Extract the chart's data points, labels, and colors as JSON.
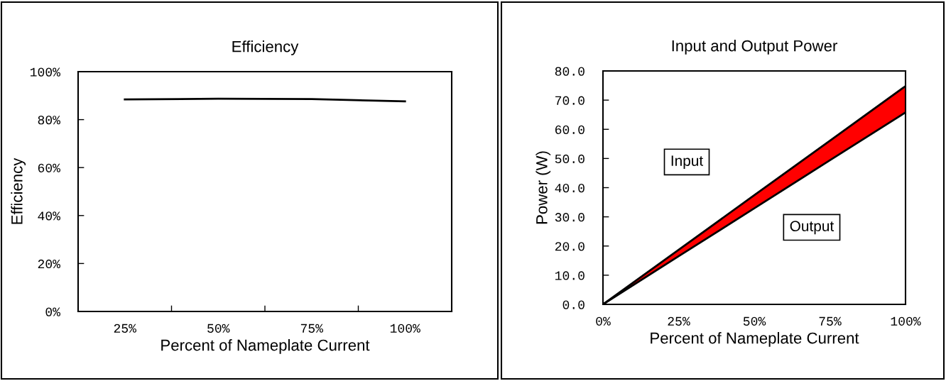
{
  "chart_data": [
    {
      "type": "line",
      "title": "Efficiency",
      "xlabel": "Percent of Nameplate Current",
      "ylabel": "Efficiency",
      "categories": [
        "25%",
        "50%",
        "75%",
        "100%"
      ],
      "series": [
        {
          "color": "#000000",
          "values": [
            88.4,
            88.7,
            88.6,
            87.6
          ]
        }
      ],
      "ylim": [
        0,
        100
      ],
      "yticks": [
        {
          "value": 0,
          "label": "0%"
        },
        {
          "value": 20,
          "label": "20%"
        },
        {
          "value": 40,
          "label": "40%"
        },
        {
          "value": 60,
          "label": "60%"
        },
        {
          "value": 80,
          "label": "80%"
        },
        {
          "value": 100,
          "label": "100%"
        }
      ],
      "grid": false,
      "legend": false,
      "marker": "none",
      "line_style": "solid"
    },
    {
      "type": "line",
      "title": "Input and Output Power",
      "xlabel": "Percent of Nameplate Current",
      "ylabel": "Power (W)",
      "x": [
        0,
        25,
        50,
        75,
        100
      ],
      "series": [
        {
          "type": "area",
          "color": "#ffffff",
          "values": [
            0,
            16.5,
            32.9,
            49.4,
            65.8
          ]
        },
        {
          "type": "area",
          "color": "#ff0000",
          "values": [
            0,
            2.2,
            4.5,
            6.7,
            9.0
          ]
        }
      ],
      "stacked": true,
      "annotations": [
        "Input",
        "Output"
      ],
      "xlim": [
        0,
        100
      ],
      "xticks": [
        {
          "value": 0,
          "label": "0%"
        },
        {
          "value": 25,
          "label": "25%"
        },
        {
          "value": 50,
          "label": "50%"
        },
        {
          "value": 75,
          "label": "75%"
        },
        {
          "value": 100,
          "label": "100%"
        }
      ],
      "ylim": [
        0,
        80
      ],
      "yticks": [
        {
          "value": 0,
          "label": "0.0"
        },
        {
          "value": 10,
          "label": "10.0"
        },
        {
          "value": 20,
          "label": "20.0"
        },
        {
          "value": 30,
          "label": "30.0"
        },
        {
          "value": 40,
          "label": "40.0"
        },
        {
          "value": 50,
          "label": "50.0"
        },
        {
          "value": 60,
          "label": "60.0"
        },
        {
          "value": 70,
          "label": "70.0"
        },
        {
          "value": 80,
          "label": "80.0"
        }
      ],
      "grid": false,
      "legend": false,
      "marker": "none",
      "line_style": "solid"
    }
  ]
}
